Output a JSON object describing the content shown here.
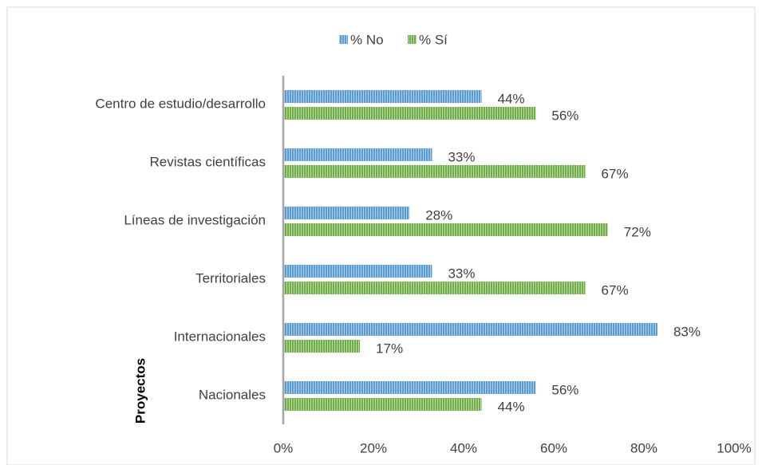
{
  "chart_data": {
    "type": "barh",
    "y_label": "Proyectos",
    "categories": [
      "Centro de estudio/desarrollo",
      "Revistas científicas",
      "Líneas de investigación",
      "Territoriales",
      "Internacionales",
      "Nacionales"
    ],
    "series": [
      {
        "name": "% No",
        "color": "#5b9bd5",
        "values": [
          44,
          33,
          28,
          33,
          83,
          56
        ],
        "value_labels": [
          "44%",
          "33%",
          "28%",
          "33%",
          "83%",
          "56%"
        ]
      },
      {
        "name": "% Sí",
        "color": "#70ad47",
        "values": [
          56,
          67,
          72,
          67,
          17,
          44
        ],
        "value_labels": [
          "56%",
          "67%",
          "72%",
          "67%",
          "17%",
          "44%"
        ]
      }
    ],
    "xlim": [
      0,
      100
    ],
    "xticks": [
      {
        "value": 0,
        "label": "0%"
      },
      {
        "value": 20,
        "label": "20%"
      },
      {
        "value": 40,
        "label": "40%"
      },
      {
        "value": 60,
        "label": "60%"
      },
      {
        "value": 80,
        "label": "80%"
      },
      {
        "value": 100,
        "label": "100%"
      }
    ],
    "legend": "top",
    "grid": false
  }
}
